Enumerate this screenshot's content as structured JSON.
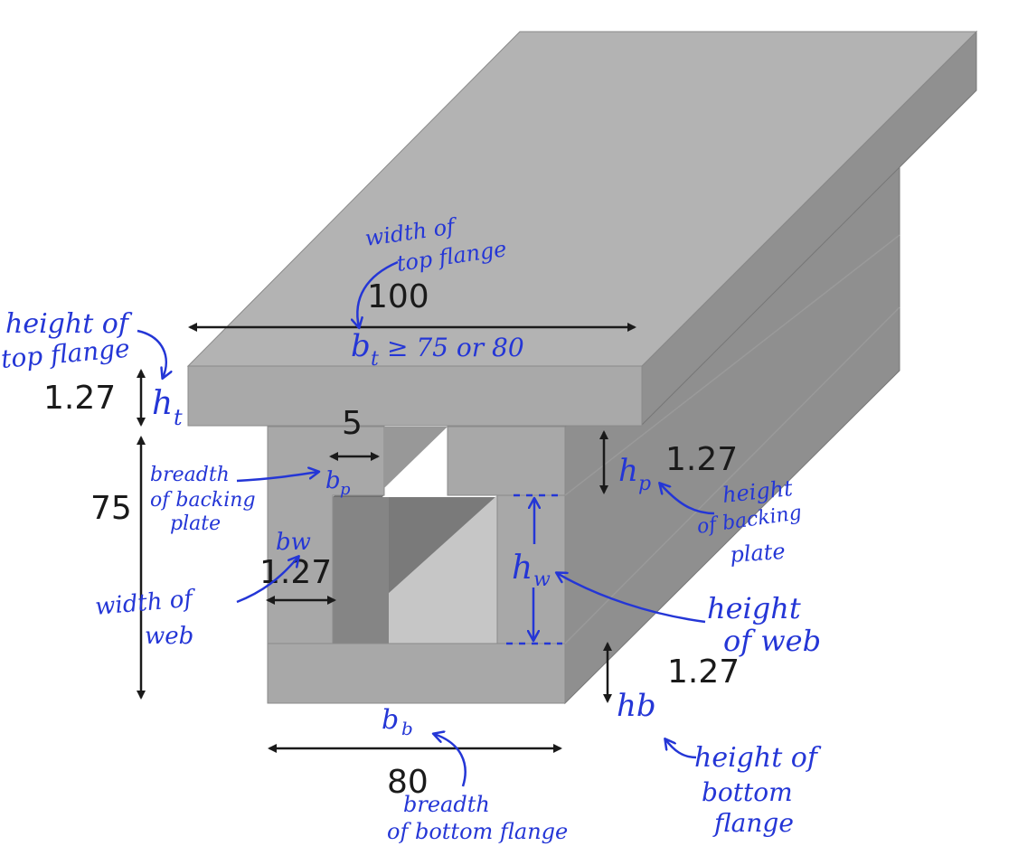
{
  "dimensions": {
    "top_flange_width": "100",
    "top_flange_height": "1.27",
    "web_height": "75",
    "backing_plate_breadth": "5",
    "backing_plate_height": "1.27",
    "web_width": "1.27",
    "bottom_flange_height": "1.27",
    "bottom_flange_breadth": "80"
  },
  "annotations": {
    "width_of_top_flange_l1": "width of",
    "width_of_top_flange_l2": "top flange",
    "bt_label": "b",
    "bt_sub": "t",
    "bt_constraint": "≥ 75 or 80",
    "height_of_top_flange_l1": "height of",
    "height_of_top_flange_l2": "top flange",
    "ht_label": "h",
    "ht_sub": "t",
    "breadth_of_backing_plate_l1": "breadth",
    "breadth_of_backing_plate_l2": "of backing",
    "breadth_of_backing_plate_l3": "plate",
    "bp_label": "b",
    "bp_sub": "p",
    "hp_label": "h",
    "hp_sub": "p",
    "height_of_backing_plate_l1": "height",
    "height_of_backing_plate_l2": "of backing",
    "height_of_backing_plate_l3": "plate",
    "bw_label": "bw",
    "width_of_web_l1": "width of",
    "width_of_web_l2": "web",
    "hw_label": "h",
    "hw_sub": "w",
    "height_of_web_l1": "height",
    "height_of_web_l2": "of web",
    "hb_label": "hb",
    "height_of_bottom_flange_l1": "height of",
    "height_of_bottom_flange_l2": "bottom",
    "height_of_bottom_flange_l3": "flange",
    "bb_label": "b",
    "bb_sub": "b",
    "breadth_of_bottom_flange_l1": "breadth",
    "breadth_of_bottom_flange_l2": "of bottom flange"
  },
  "colors": {
    "top_face": "#b2b2b2",
    "front_face": "#a6a6a6",
    "side_face": "#8a8a8a",
    "inner_dark": "#7d7d7d",
    "inner_light": "#c4c4c4",
    "ink": "#2436d6",
    "dimension": "#1a1a1a"
  }
}
